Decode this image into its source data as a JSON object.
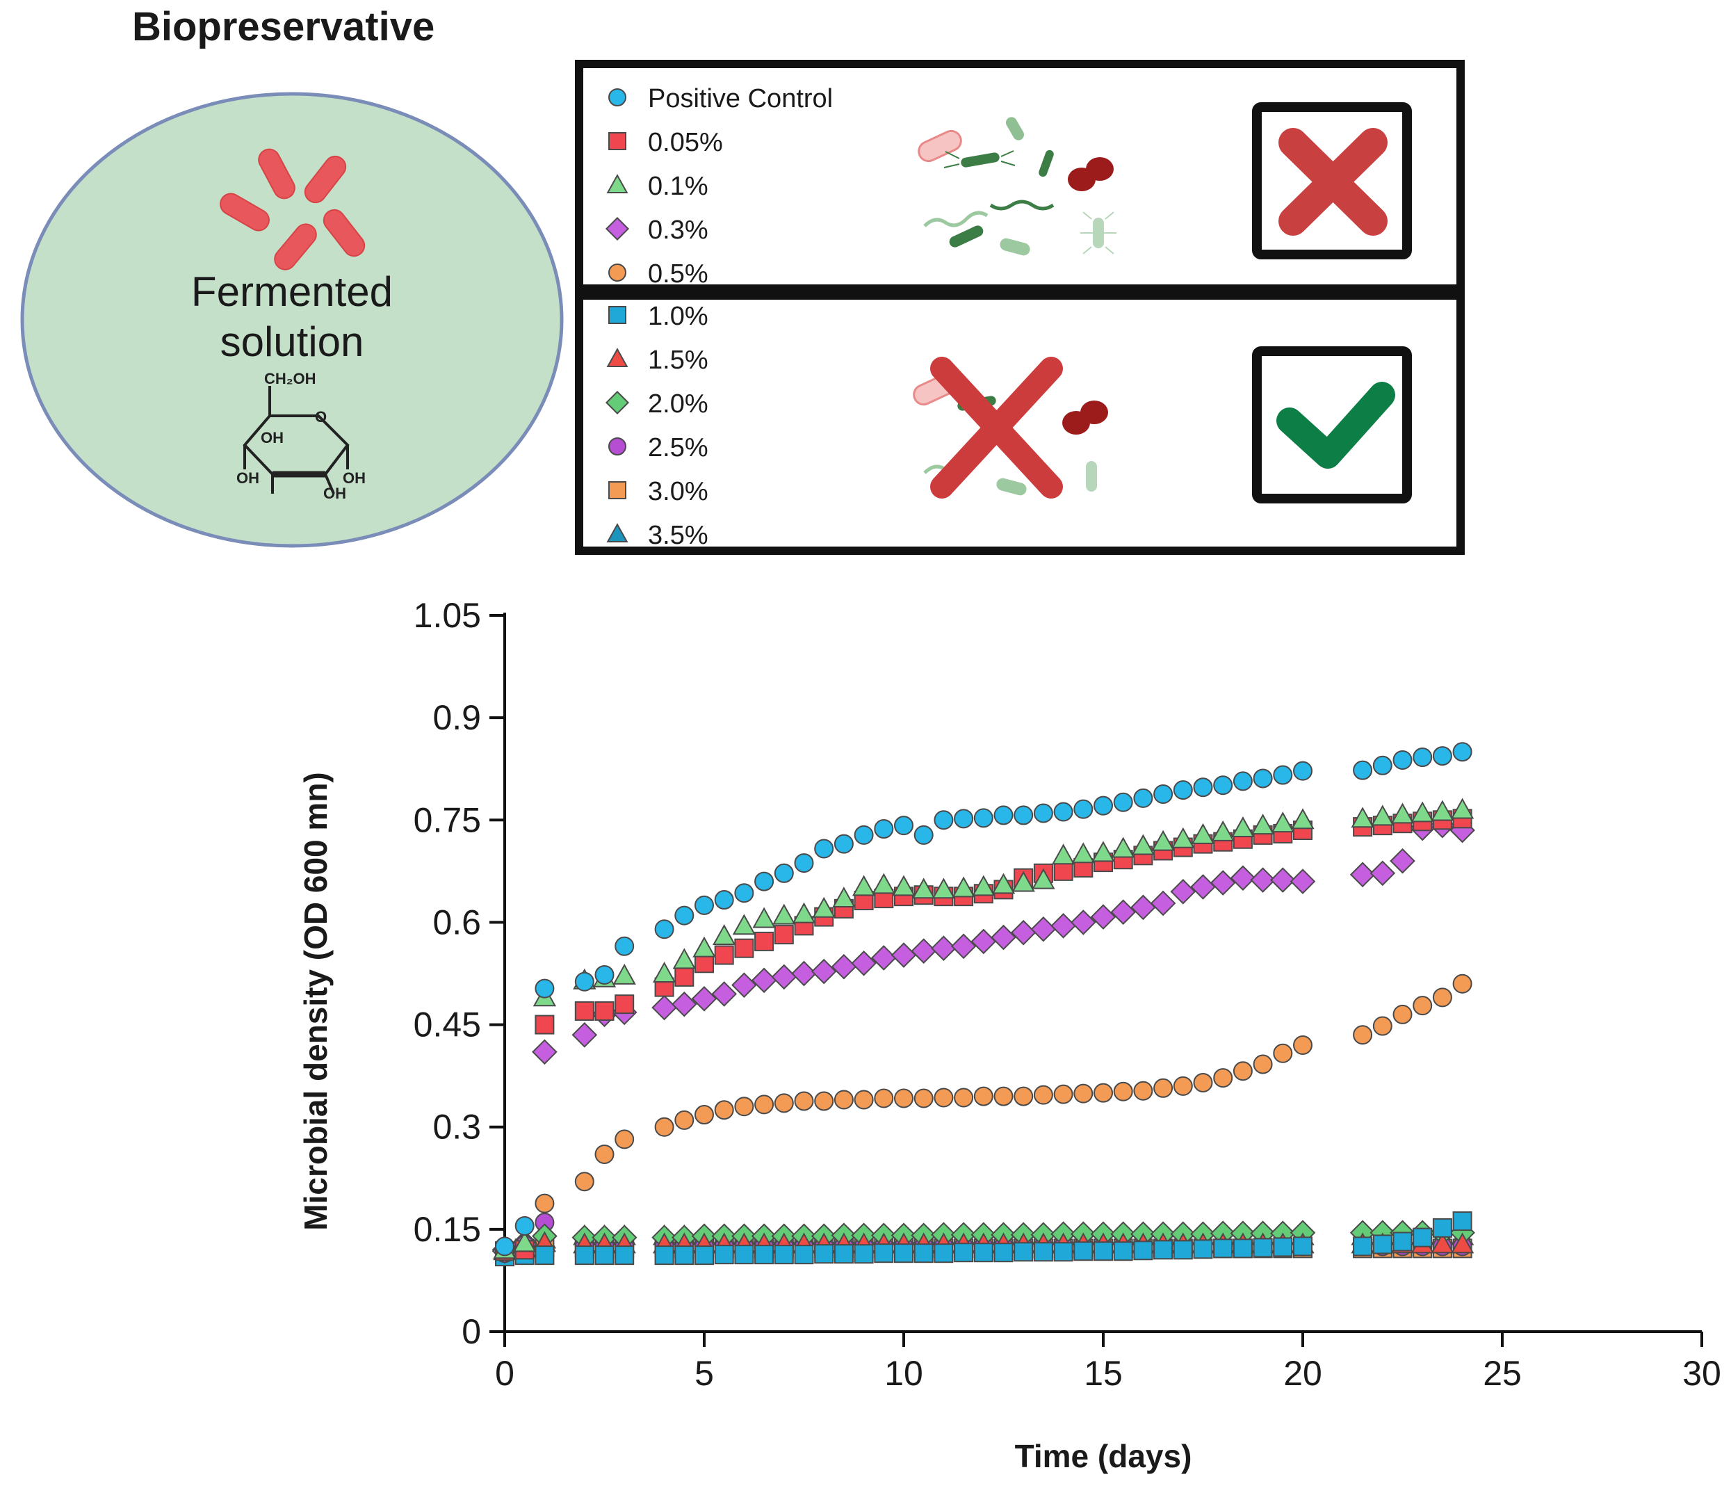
{
  "graphic": {
    "title": "Biopreservative",
    "solution_label_line1": "Fermented",
    "solution_label_line2": "solution",
    "sugar_labels": {
      "ch2oh": "CH₂OH",
      "ring_o": "O",
      "oh_1": "OH",
      "oh_2": "OH",
      "oh_3": "OH",
      "oh_4": "OH"
    },
    "cross_icon": "cross-icon",
    "check_icon": "check-icon",
    "microbes_icon": "microbes-icon"
  },
  "legend": {
    "top_group": [
      {
        "label": "Positive Control",
        "marker": "circle",
        "color": "#29b6e8"
      },
      {
        "label": "0.05%",
        "marker": "square",
        "color": "#f0464f"
      },
      {
        "label": "0.1%",
        "marker": "triangle",
        "color": "#7fd98a"
      },
      {
        "label": "0.3%",
        "marker": "diamond",
        "color": "#c55fe0"
      },
      {
        "label": "0.5%",
        "marker": "circle",
        "color": "#f39a55"
      }
    ],
    "bottom_group": [
      {
        "label": "1.0%",
        "marker": "square",
        "color": "#1fa8d8"
      },
      {
        "label": "1.5%",
        "marker": "triangle",
        "color": "#ef4b45"
      },
      {
        "label": "2.0%",
        "marker": "diamond",
        "color": "#64cc77"
      },
      {
        "label": "2.5%",
        "marker": "circle",
        "color": "#b64ed4"
      },
      {
        "label": "3.0%",
        "marker": "square",
        "color": "#f39a55"
      },
      {
        "label": "3.5%",
        "marker": "triangle",
        "color": "#1c94bc"
      }
    ]
  },
  "chart_data": {
    "type": "scatter",
    "xlabel": "Time (days)",
    "ylabel": "Microbial density (OD 600 mn)",
    "xlim": [
      0,
      30
    ],
    "ylim": [
      0,
      1.05
    ],
    "xticks": [
      0,
      5,
      10,
      15,
      20,
      25,
      30
    ],
    "yticks": [
      0,
      0.15,
      0.3,
      0.45,
      0.6,
      0.75,
      0.9,
      1.05
    ],
    "ytick_labels": [
      "0",
      "0.15",
      "0.3",
      "0.45",
      "0.6",
      "0.75",
      "0.9",
      "1.05"
    ],
    "grid": false,
    "x": [
      0,
      0.5,
      1,
      2,
      2.5,
      3,
      4,
      4.5,
      5,
      5.5,
      6,
      6.5,
      7,
      7.5,
      8,
      8.5,
      9,
      9.5,
      10,
      10.5,
      11,
      11.5,
      12,
      12.5,
      13,
      13.5,
      14,
      14.5,
      15,
      15.5,
      16,
      16.5,
      17,
      17.5,
      18,
      18.5,
      19,
      19.5,
      20,
      21.5,
      22,
      22.5,
      23,
      23.5,
      24
    ],
    "series": [
      {
        "name": "Positive Control",
        "marker": "circle",
        "color": "#29b6e8",
        "values": [
          0.125,
          0.155,
          0.503,
          0.513,
          0.523,
          0.565,
          0.59,
          0.61,
          0.625,
          0.633,
          0.643,
          0.66,
          0.672,
          0.687,
          0.708,
          0.715,
          0.728,
          0.737,
          0.742,
          0.728,
          0.75,
          0.752,
          0.753,
          0.757,
          0.757,
          0.76,
          0.762,
          0.766,
          0.771,
          0.776,
          0.782,
          0.788,
          0.794,
          0.798,
          0.801,
          0.807,
          0.811,
          0.816,
          0.822,
          0.823,
          0.83,
          0.838,
          0.842,
          0.844,
          0.85
        ]
      },
      {
        "name": "0.05%",
        "marker": "square",
        "color": "#f0464f",
        "values": [
          0.118,
          0.12,
          0.45,
          0.47,
          0.47,
          0.48,
          0.505,
          0.52,
          0.54,
          0.552,
          0.562,
          0.572,
          0.582,
          0.595,
          0.608,
          0.62,
          0.632,
          0.635,
          0.638,
          0.64,
          0.638,
          0.638,
          0.642,
          0.648,
          0.665,
          0.672,
          0.675,
          0.68,
          0.688,
          0.692,
          0.698,
          0.705,
          0.71,
          0.715,
          0.718,
          0.722,
          0.728,
          0.73,
          0.735,
          0.74,
          0.742,
          0.745,
          0.748,
          0.75,
          0.752
        ]
      },
      {
        "name": "0.1%",
        "marker": "triangle",
        "color": "#7fd98a",
        "values": [
          0.12,
          0.13,
          0.49,
          0.515,
          0.518,
          0.522,
          0.525,
          0.545,
          0.562,
          0.58,
          0.595,
          0.605,
          0.61,
          0.612,
          0.62,
          0.635,
          0.652,
          0.655,
          0.652,
          0.648,
          0.648,
          0.65,
          0.652,
          0.655,
          0.658,
          0.662,
          0.698,
          0.7,
          0.702,
          0.708,
          0.712,
          0.718,
          0.722,
          0.728,
          0.732,
          0.738,
          0.742,
          0.745,
          0.75,
          0.752,
          0.755,
          0.758,
          0.76,
          0.762,
          0.765
        ]
      },
      {
        "name": "0.3%",
        "marker": "diamond",
        "color": "#c55fe0",
        "values": [
          0.118,
          0.128,
          0.41,
          0.435,
          0.465,
          0.468,
          0.475,
          0.48,
          0.488,
          0.495,
          0.508,
          0.515,
          0.52,
          0.525,
          0.528,
          0.535,
          0.54,
          0.548,
          0.552,
          0.558,
          0.562,
          0.565,
          0.572,
          0.578,
          0.585,
          0.59,
          0.595,
          0.6,
          0.608,
          0.615,
          0.622,
          0.628,
          0.645,
          0.652,
          0.658,
          0.665,
          0.662,
          0.662,
          0.66,
          0.67,
          0.672,
          0.69,
          0.738,
          0.742,
          0.735
        ]
      },
      {
        "name": "0.5%",
        "marker": "circle",
        "color": "#f39a55",
        "values": [
          0.115,
          0.128,
          0.188,
          0.22,
          0.26,
          0.282,
          0.3,
          0.31,
          0.318,
          0.325,
          0.33,
          0.333,
          0.335,
          0.338,
          0.338,
          0.34,
          0.34,
          0.342,
          0.342,
          0.342,
          0.343,
          0.343,
          0.345,
          0.345,
          0.345,
          0.347,
          0.348,
          0.349,
          0.35,
          0.352,
          0.353,
          0.357,
          0.36,
          0.365,
          0.372,
          0.382,
          0.392,
          0.408,
          0.42,
          0.435,
          0.448,
          0.465,
          0.478,
          0.49,
          0.51
        ]
      },
      {
        "name": "1.0%",
        "marker": "square",
        "color": "#1fa8d8",
        "values": [
          0.11,
          0.112,
          0.112,
          0.112,
          0.112,
          0.112,
          0.112,
          0.112,
          0.112,
          0.113,
          0.113,
          0.113,
          0.113,
          0.113,
          0.114,
          0.114,
          0.114,
          0.115,
          0.115,
          0.115,
          0.115,
          0.116,
          0.116,
          0.116,
          0.117,
          0.117,
          0.117,
          0.118,
          0.118,
          0.118,
          0.119,
          0.12,
          0.12,
          0.121,
          0.122,
          0.122,
          0.123,
          0.124,
          0.125,
          0.125,
          0.128,
          0.132,
          0.138,
          0.152,
          0.162
        ]
      },
      {
        "name": "1.5%",
        "marker": "triangle",
        "color": "#ef4b45",
        "values": [
          0.118,
          0.122,
          0.13,
          0.128,
          0.128,
          0.128,
          0.128,
          0.128,
          0.128,
          0.128,
          0.128,
          0.128,
          0.128,
          0.128,
          0.128,
          0.128,
          0.128,
          0.128,
          0.128,
          0.128,
          0.128,
          0.128,
          0.128,
          0.128,
          0.128,
          0.128,
          0.128,
          0.128,
          0.128,
          0.128,
          0.128,
          0.128,
          0.128,
          0.128,
          0.128,
          0.128,
          0.128,
          0.128,
          0.128,
          0.128,
          0.128,
          0.128,
          0.128,
          0.128,
          0.128
        ]
      },
      {
        "name": "2.0%",
        "marker": "diamond",
        "color": "#64cc77",
        "values": [
          0.12,
          0.13,
          0.14,
          0.138,
          0.138,
          0.138,
          0.138,
          0.138,
          0.14,
          0.14,
          0.14,
          0.14,
          0.14,
          0.14,
          0.14,
          0.141,
          0.141,
          0.141,
          0.141,
          0.141,
          0.142,
          0.142,
          0.142,
          0.142,
          0.142,
          0.142,
          0.143,
          0.143,
          0.143,
          0.143,
          0.143,
          0.143,
          0.143,
          0.143,
          0.144,
          0.144,
          0.144,
          0.144,
          0.145,
          0.145,
          0.145,
          0.145,
          0.145,
          0.145,
          0.145
        ]
      },
      {
        "name": "2.5%",
        "marker": "circle",
        "color": "#b64ed4",
        "values": [
          0.12,
          0.128,
          0.16,
          0.125,
          0.125,
          0.125,
          0.125,
          0.125,
          0.125,
          0.125,
          0.125,
          0.125,
          0.125,
          0.125,
          0.125,
          0.125,
          0.125,
          0.125,
          0.125,
          0.125,
          0.125,
          0.125,
          0.125,
          0.125,
          0.125,
          0.125,
          0.125,
          0.125,
          0.125,
          0.125,
          0.125,
          0.125,
          0.125,
          0.125,
          0.125,
          0.125,
          0.125,
          0.125,
          0.125,
          0.125,
          0.125,
          0.125,
          0.125,
          0.125,
          0.125
        ]
      },
      {
        "name": "3.0%",
        "marker": "square",
        "color": "#f39a55",
        "values": [
          0.118,
          0.122,
          0.122,
          0.122,
          0.122,
          0.122,
          0.122,
          0.122,
          0.122,
          0.122,
          0.122,
          0.122,
          0.122,
          0.122,
          0.122,
          0.122,
          0.122,
          0.122,
          0.122,
          0.122,
          0.122,
          0.122,
          0.122,
          0.122,
          0.122,
          0.122,
          0.122,
          0.122,
          0.122,
          0.122,
          0.122,
          0.122,
          0.122,
          0.122,
          0.122,
          0.122,
          0.122,
          0.122,
          0.122,
          0.122,
          0.122,
          0.122,
          0.122,
          0.122,
          0.122
        ]
      },
      {
        "name": "3.5%",
        "marker": "triangle",
        "color": "#1c94bc",
        "values": [
          0.12,
          0.135,
          0.135,
          0.14,
          0.14,
          0.14,
          0.14,
          0.14,
          0.14,
          0.14,
          0.14,
          0.14,
          0.14,
          0.14,
          0.14,
          0.14,
          0.14,
          0.14,
          0.14,
          0.14,
          0.14,
          0.14,
          0.14,
          0.14,
          0.14,
          0.14,
          0.14,
          0.14,
          0.14,
          0.14,
          0.14,
          0.14,
          0.14,
          0.14,
          0.14,
          0.14,
          0.14,
          0.14,
          0.14,
          0.14,
          0.14,
          0.14,
          0.14,
          0.14,
          0.14
        ]
      }
    ]
  }
}
